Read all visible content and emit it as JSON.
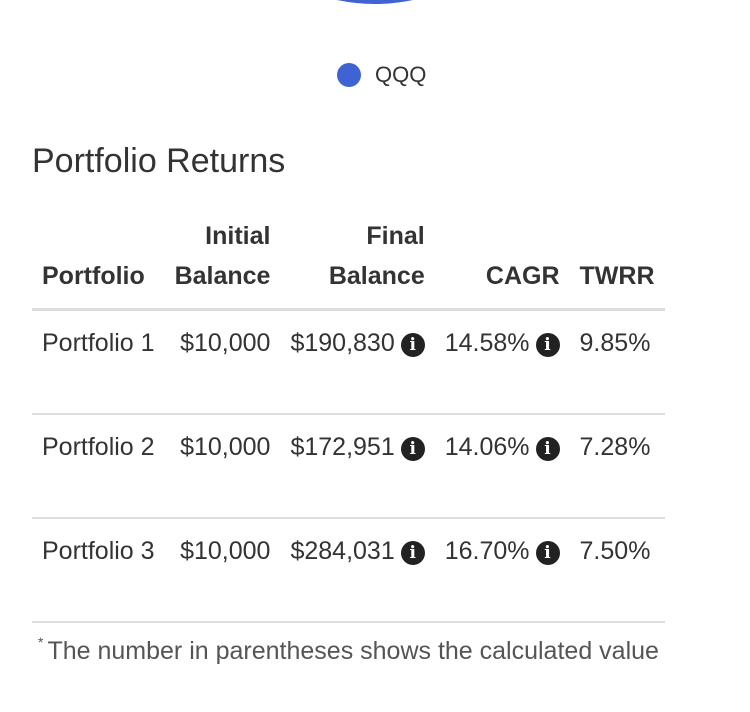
{
  "chart": {
    "legend": [
      {
        "label": "QQQ",
        "color": "#3f63d3"
      }
    ]
  },
  "section_title": "Portfolio Returns",
  "table": {
    "headers": {
      "portfolio": "Portfolio",
      "initial_balance_line1": "Initial",
      "initial_balance_line2": "Balance",
      "final_balance_line1": "Final",
      "final_balance_line2": "Balance",
      "cagr": "CAGR",
      "twrr": "TWRR"
    },
    "rows": [
      {
        "portfolio": "Portfolio 1",
        "initial_balance": "$10,000",
        "final_balance": "$190,830",
        "cagr": "14.58%",
        "twrr": "9.85%"
      },
      {
        "portfolio": "Portfolio 2",
        "initial_balance": "$10,000",
        "final_balance": "$172,951",
        "cagr": "14.06%",
        "twrr": "7.28%"
      },
      {
        "portfolio": "Portfolio 3",
        "initial_balance": "$10,000",
        "final_balance": "$284,031",
        "cagr": "16.70%",
        "twrr": "7.50%"
      }
    ]
  },
  "footnote": {
    "marker": "*",
    "text": "The number in parentheses shows the calculated value"
  }
}
